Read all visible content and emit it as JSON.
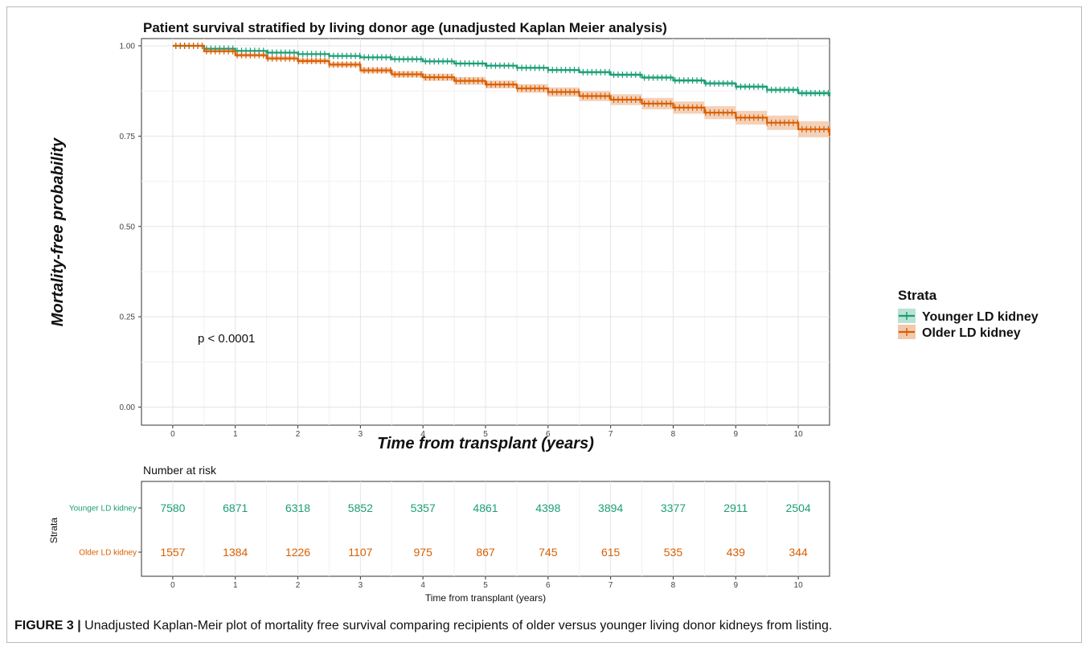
{
  "caption": {
    "label": "FIGURE 3 |",
    "text": " Unadjusted Kaplan-Meir plot of mortality free survival comparing recipients of older versus younger living donor kidneys from listing."
  },
  "colors": {
    "younger": "#1b9e77",
    "older": "#d95f02",
    "older_band": "#f2c9ad",
    "younger_band": "#b9e3d5",
    "grid_major": "#e4e4e4",
    "grid_minor": "#f1f1f1"
  },
  "chart_data": [
    {
      "type": "line",
      "subtype": "kaplan-meier",
      "title": "Patient survival stratified by living donor age (unadjusted Kaplan Meier analysis)",
      "xlabel": "Time from transplant (years)",
      "ylabel": "Mortality-free probability",
      "xlim": [
        -0.5,
        10.5
      ],
      "ylim": [
        -0.05,
        1.02
      ],
      "x_ticks": [
        0,
        1,
        2,
        3,
        4,
        5,
        6,
        7,
        8,
        9,
        10
      ],
      "y_ticks": [
        0.0,
        0.25,
        0.5,
        0.75,
        1.0
      ],
      "y_tick_labels": [
        "0.00",
        "0.25",
        "0.50",
        "0.75",
        "1.00"
      ],
      "grid": true,
      "annotation": "p < 0.0001",
      "legend": {
        "title": "Strata",
        "position": "right",
        "entries": [
          "Younger LD kidney",
          "Older LD kidney"
        ]
      },
      "series": [
        {
          "name": "Younger LD kidney",
          "color": "#1b9e77",
          "x": [
            0,
            0.5,
            1,
            1.5,
            2,
            2.5,
            3,
            3.5,
            4,
            4.5,
            5,
            5.5,
            6,
            6.5,
            7,
            7.5,
            8,
            8.5,
            9,
            9.5,
            10,
            10.5
          ],
          "y": [
            1.0,
            0.992,
            0.986,
            0.981,
            0.977,
            0.972,
            0.968,
            0.963,
            0.957,
            0.951,
            0.945,
            0.939,
            0.933,
            0.927,
            0.92,
            0.912,
            0.904,
            0.896,
            0.887,
            0.878,
            0.869,
            0.861
          ],
          "ci_halfwidth": [
            0,
            0.002,
            0.002,
            0.002,
            0.002,
            0.002,
            0.002,
            0.003,
            0.003,
            0.003,
            0.003,
            0.003,
            0.003,
            0.004,
            0.004,
            0.004,
            0.004,
            0.005,
            0.005,
            0.005,
            0.006,
            0.006
          ]
        },
        {
          "name": "Older LD kidney",
          "color": "#d95f02",
          "x": [
            0,
            0.5,
            1,
            1.5,
            2,
            2.5,
            3,
            3.5,
            4,
            4.5,
            5,
            5.5,
            6,
            6.5,
            7,
            7.5,
            8,
            8.5,
            9,
            9.5,
            10,
            10.5
          ],
          "y": [
            1.0,
            0.985,
            0.974,
            0.965,
            0.958,
            0.948,
            0.932,
            0.921,
            0.913,
            0.903,
            0.893,
            0.882,
            0.872,
            0.861,
            0.851,
            0.84,
            0.829,
            0.815,
            0.801,
            0.787,
            0.769,
            0.751
          ],
          "ci_halfwidth": [
            0,
            0.004,
            0.005,
            0.006,
            0.007,
            0.007,
            0.008,
            0.009,
            0.01,
            0.011,
            0.011,
            0.012,
            0.013,
            0.014,
            0.015,
            0.016,
            0.017,
            0.018,
            0.019,
            0.02,
            0.022,
            0.024
          ]
        }
      ]
    },
    {
      "type": "table",
      "title": "Number at risk",
      "xlabel": "Time from transplant (years)",
      "ylabel": "Strata",
      "x_ticks": [
        0,
        1,
        2,
        3,
        4,
        5,
        6,
        7,
        8,
        9,
        10
      ],
      "rows": [
        {
          "name": "Younger LD kidney",
          "color": "#1b9e77",
          "values": [
            7580,
            6871,
            6318,
            5852,
            5357,
            4861,
            4398,
            3894,
            3377,
            2911,
            2504
          ]
        },
        {
          "name": "Older LD kidney",
          "color": "#d95f02",
          "values": [
            1557,
            1384,
            1226,
            1107,
            975,
            867,
            745,
            615,
            535,
            439,
            344
          ]
        }
      ]
    }
  ]
}
